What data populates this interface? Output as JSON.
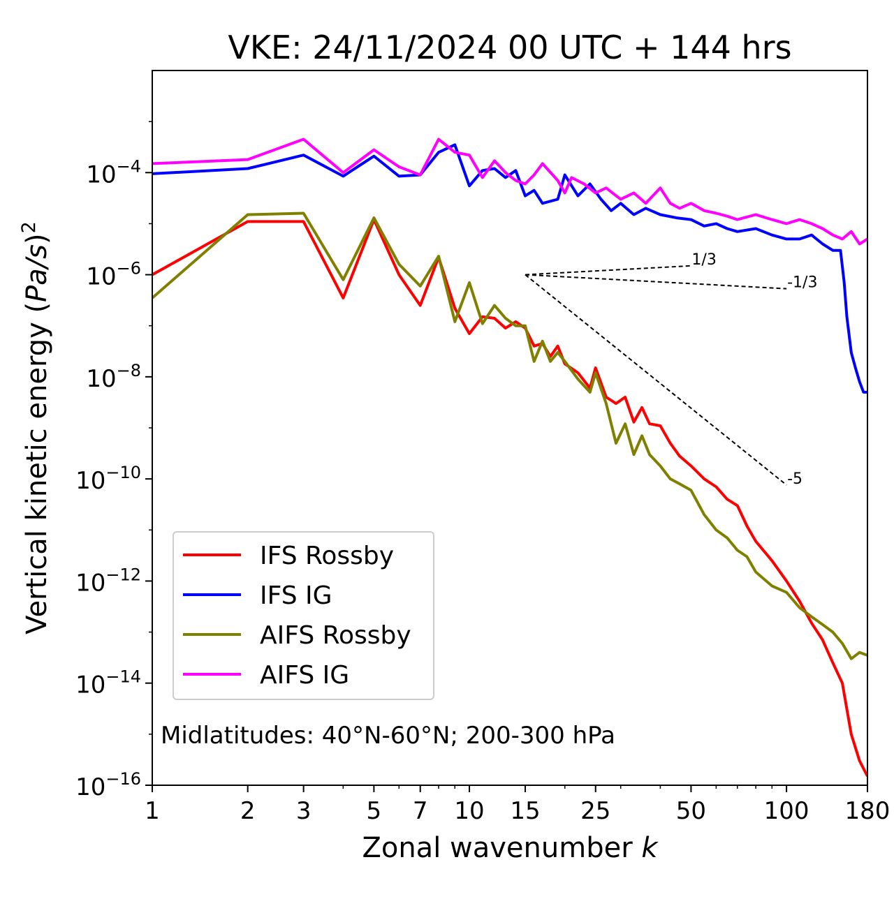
{
  "chart_data": {
    "type": "line",
    "title": "VKE: 24/11/2024 00 UTC + 144 hrs",
    "xlabel_text": "Zonal wavenumber ",
    "xlabel_var": "k",
    "ylabel_text": "Vertical kinetic energy (",
    "ylabel_var": "Pa/s",
    "ylabel_close": ")",
    "ylabel_exp": "2",
    "x_scale": "log",
    "y_scale": "log",
    "xlim": [
      1,
      180
    ],
    "ylim": [
      1e-16,
      0.01
    ],
    "x_ticks": [
      1,
      2,
      3,
      5,
      7,
      10,
      15,
      25,
      50,
      100,
      180
    ],
    "x_tick_labels": [
      "1",
      "2",
      "3",
      "5",
      "7",
      "10",
      "15",
      "25",
      "50",
      "100",
      "180"
    ],
    "y_ticks": [
      1e-16,
      1e-14,
      1e-12,
      1e-10,
      1e-08,
      1e-06,
      0.0001
    ],
    "y_tick_bases": [
      "10",
      "10",
      "10",
      "10",
      "10",
      "10",
      "10"
    ],
    "y_tick_exponents": [
      "−16",
      "−14",
      "−12",
      "−10",
      "−8",
      "−6",
      "−4"
    ],
    "grid": false,
    "legend_position": "lower-left",
    "annotation": "Midlatitudes: 40°N-60°N; 200-300 hPa",
    "reference_slopes": [
      {
        "label": "1/3",
        "slope": 0.3333,
        "x_start": 15,
        "y_start": 1e-06,
        "x_end": 50
      },
      {
        "label": "-1/3",
        "slope": -0.3333,
        "x_start": 15,
        "y_start": 1e-06,
        "x_end": 100
      },
      {
        "label": "-5",
        "slope": -5,
        "x_start": 15,
        "y_start": 1e-06,
        "x_end": 100
      }
    ],
    "series": [
      {
        "name": "IFS Rossby",
        "color": "#ff0000",
        "points": [
          [
            1,
            1e-06
          ],
          [
            2,
            1.1e-05
          ],
          [
            3,
            1.1e-05
          ],
          [
            4,
            3.5e-07
          ],
          [
            5,
            1.2e-05
          ],
          [
            6,
            1e-06
          ],
          [
            7,
            2.5e-07
          ],
          [
            8,
            2.2e-06
          ],
          [
            9,
            2.2e-07
          ],
          [
            10,
            7e-08
          ],
          [
            11,
            1.5e-07
          ],
          [
            12,
            1.4e-07
          ],
          [
            13,
            9e-08
          ],
          [
            14,
            1.2e-07
          ],
          [
            15,
            9e-08
          ],
          [
            16,
            4e-08
          ],
          [
            17,
            4.5e-08
          ],
          [
            18,
            2.5e-08
          ],
          [
            19,
            4e-08
          ],
          [
            20,
            1.8e-08
          ],
          [
            22,
            1.2e-08
          ],
          [
            24,
            6e-09
          ],
          [
            25,
            1.5e-08
          ],
          [
            27,
            4e-09
          ],
          [
            29,
            3e-09
          ],
          [
            31,
            4e-09
          ],
          [
            33,
            1.3e-09
          ],
          [
            35,
            2.5e-09
          ],
          [
            37,
            1.2e-09
          ],
          [
            40,
            1.1e-09
          ],
          [
            43,
            5e-10
          ],
          [
            46,
            2.8e-10
          ],
          [
            50,
            1.8e-10
          ],
          [
            55,
            1e-10
          ],
          [
            60,
            7e-11
          ],
          [
            65,
            4e-11
          ],
          [
            70,
            3e-11
          ],
          [
            75,
            1.2e-11
          ],
          [
            80,
            6e-12
          ],
          [
            90,
            2.5e-12
          ],
          [
            100,
            1e-12
          ],
          [
            110,
            4e-13
          ],
          [
            120,
            1.5e-13
          ],
          [
            130,
            7e-14
          ],
          [
            140,
            2.5e-14
          ],
          [
            150,
            1e-14
          ],
          [
            160,
            1e-15
          ],
          [
            170,
            3e-16
          ],
          [
            180,
            1.5e-16
          ]
        ]
      },
      {
        "name": "IFS IG",
        "color": "#0000ff",
        "points": [
          [
            1,
            9.5e-05
          ],
          [
            2,
            0.00012
          ],
          [
            3,
            0.00022
          ],
          [
            4,
            8.5e-05
          ],
          [
            5,
            0.00021
          ],
          [
            6,
            8.5e-05
          ],
          [
            7,
            9e-05
          ],
          [
            8,
            0.00025
          ],
          [
            9,
            0.00035
          ],
          [
            10,
            5.5e-05
          ],
          [
            11,
            0.00011
          ],
          [
            12,
            0.00012
          ],
          [
            13,
            8e-05
          ],
          [
            14,
            0.00011
          ],
          [
            15,
            3.5e-05
          ],
          [
            16,
            4.5e-05
          ],
          [
            17,
            2.5e-05
          ],
          [
            19,
            3e-05
          ],
          [
            20,
            9e-05
          ],
          [
            22,
            3.5e-05
          ],
          [
            24,
            6e-05
          ],
          [
            26,
            3e-05
          ],
          [
            28,
            1.8e-05
          ],
          [
            30,
            2.5e-05
          ],
          [
            33,
            1.5e-05
          ],
          [
            36,
            2e-05
          ],
          [
            40,
            1.5e-05
          ],
          [
            45,
            1.3e-05
          ],
          [
            50,
            1.2e-05
          ],
          [
            55,
            9e-06
          ],
          [
            60,
            1e-05
          ],
          [
            65,
            8e-06
          ],
          [
            70,
            7e-06
          ],
          [
            80,
            8e-06
          ],
          [
            90,
            6e-06
          ],
          [
            100,
            5e-06
          ],
          [
            110,
            5e-06
          ],
          [
            120,
            6e-06
          ],
          [
            130,
            4e-06
          ],
          [
            140,
            3e-06
          ],
          [
            148,
            3e-06
          ],
          [
            152,
            7e-07
          ],
          [
            155,
            1.5e-07
          ],
          [
            160,
            3e-08
          ],
          [
            165,
            1.5e-08
          ],
          [
            170,
            8e-09
          ],
          [
            175,
            5e-09
          ],
          [
            180,
            5e-09
          ]
        ]
      },
      {
        "name": "AIFS Rossby",
        "color": "#808000",
        "points": [
          [
            1,
            3.5e-07
          ],
          [
            2,
            1.5e-05
          ],
          [
            3,
            1.6e-05
          ],
          [
            4,
            8e-07
          ],
          [
            5,
            1.3e-05
          ],
          [
            6,
            1.6e-06
          ],
          [
            7,
            6e-07
          ],
          [
            8,
            2.3e-06
          ],
          [
            9,
            1.2e-07
          ],
          [
            10,
            7e-07
          ],
          [
            11,
            1.1e-07
          ],
          [
            12,
            2.5e-07
          ],
          [
            13,
            1.4e-07
          ],
          [
            14,
            1e-07
          ],
          [
            15,
            1e-07
          ],
          [
            16,
            2e-08
          ],
          [
            17,
            5e-08
          ],
          [
            18,
            2e-08
          ],
          [
            19,
            3e-08
          ],
          [
            20,
            2e-08
          ],
          [
            22,
            9e-09
          ],
          [
            24,
            5e-09
          ],
          [
            25,
            1.2e-08
          ],
          [
            27,
            3e-09
          ],
          [
            29,
            5e-10
          ],
          [
            31,
            1.2e-09
          ],
          [
            33,
            3e-10
          ],
          [
            35,
            7e-10
          ],
          [
            37,
            3e-10
          ],
          [
            40,
            1.8e-10
          ],
          [
            43,
            1e-10
          ],
          [
            46,
            8e-11
          ],
          [
            50,
            6e-11
          ],
          [
            55,
            2e-11
          ],
          [
            60,
            1e-11
          ],
          [
            65,
            7e-12
          ],
          [
            70,
            4e-12
          ],
          [
            75,
            3e-12
          ],
          [
            80,
            1.5e-12
          ],
          [
            90,
            8e-13
          ],
          [
            100,
            6e-13
          ],
          [
            110,
            3e-13
          ],
          [
            120,
            2e-13
          ],
          [
            130,
            1.4e-13
          ],
          [
            140,
            1e-13
          ],
          [
            150,
            6e-14
          ],
          [
            160,
            3e-14
          ],
          [
            170,
            4e-14
          ],
          [
            180,
            3.5e-14
          ]
        ]
      },
      {
        "name": "AIFS IG",
        "color": "#ff00ff",
        "points": [
          [
            1,
            0.00015
          ],
          [
            2,
            0.00018
          ],
          [
            3,
            0.00045
          ],
          [
            4,
            0.0001
          ],
          [
            5,
            0.00028
          ],
          [
            6,
            0.00013
          ],
          [
            7,
            9e-05
          ],
          [
            8,
            0.00045
          ],
          [
            9,
            0.00025
          ],
          [
            10,
            0.00022
          ],
          [
            11,
            8e-05
          ],
          [
            12,
            0.00017
          ],
          [
            13,
            0.0001
          ],
          [
            14,
            7e-05
          ],
          [
            15,
            6e-05
          ],
          [
            16,
            9e-05
          ],
          [
            17,
            0.00015
          ],
          [
            19,
            7e-05
          ],
          [
            20,
            4e-05
          ],
          [
            21,
            8e-05
          ],
          [
            23,
            6e-05
          ],
          [
            25,
            4e-05
          ],
          [
            27,
            5e-05
          ],
          [
            30,
            3e-05
          ],
          [
            33,
            4e-05
          ],
          [
            36,
            2.5e-05
          ],
          [
            40,
            5e-05
          ],
          [
            43,
            2.5e-05
          ],
          [
            46,
            2e-05
          ],
          [
            50,
            2.5e-05
          ],
          [
            55,
            1.8e-05
          ],
          [
            60,
            1.6e-05
          ],
          [
            65,
            1.4e-05
          ],
          [
            70,
            1.2e-05
          ],
          [
            80,
            1.5e-05
          ],
          [
            90,
            1.2e-05
          ],
          [
            100,
            1e-05
          ],
          [
            110,
            1.2e-05
          ],
          [
            120,
            1e-05
          ],
          [
            130,
            8e-06
          ],
          [
            140,
            6e-06
          ],
          [
            150,
            5e-06
          ],
          [
            160,
            7e-06
          ],
          [
            170,
            4e-06
          ],
          [
            180,
            5e-06
          ]
        ]
      }
    ]
  }
}
